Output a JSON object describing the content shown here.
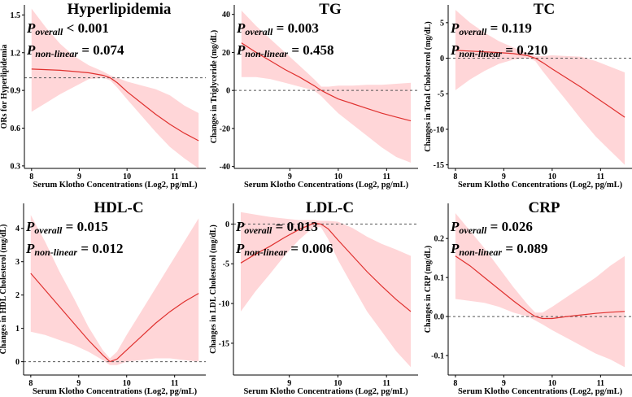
{
  "chart_data": [
    {
      "type": "line",
      "title": "Hyperlipidemia",
      "p_overall": "< 0.001",
      "p_nonlinear": "= 0.074",
      "xlabel": "Serum Klotho Concentrations (Log2, pg/mL)",
      "ylabel": "ORs for Hyperlipidemia",
      "xlim": [
        7.85,
        11.65
      ],
      "ylim": [
        0.28,
        1.58
      ],
      "x_ticks": [
        8,
        9,
        10,
        11
      ],
      "y_ticks": [
        0.3,
        0.6,
        0.9,
        1.2,
        1.5
      ],
      "y_tick_labels": [
        "0.3",
        "0.6",
        "0.9",
        "1.2",
        "1.5"
      ],
      "reference": 1,
      "x": [
        8.0,
        8.3,
        8.6,
        8.9,
        9.2,
        9.5,
        9.65,
        9.8,
        10.0,
        10.3,
        10.6,
        10.9,
        11.2,
        11.5
      ],
      "estimate": [
        1.07,
        1.065,
        1.06,
        1.05,
        1.04,
        1.02,
        1.0,
        0.96,
        0.89,
        0.8,
        0.71,
        0.63,
        0.56,
        0.5
      ],
      "lower": [
        0.73,
        0.8,
        0.87,
        0.93,
        0.99,
        1.0,
        0.98,
        0.92,
        0.83,
        0.7,
        0.57,
        0.45,
        0.36,
        0.28
      ],
      "upper": [
        1.55,
        1.4,
        1.27,
        1.17,
        1.1,
        1.05,
        1.02,
        1.0,
        0.97,
        0.94,
        0.91,
        0.86,
        0.78,
        0.72
      ]
    },
    {
      "type": "line",
      "title": "TG",
      "p_overall": "= 0.003",
      "p_nonlinear": "= 0.458",
      "xlabel": "Serum Klotho Concentrations (Log2, pg/mL)",
      "ylabel": "Changes in Triglyceride (mg/dL)",
      "xlim": [
        7.85,
        11.65
      ],
      "ylim": [
        -41,
        45
      ],
      "x_ticks": [
        9,
        10,
        11
      ],
      "y_ticks": [
        -40,
        -20,
        0,
        20,
        40
      ],
      "y_tick_labels": [
        "-40",
        "-20",
        "0",
        "20",
        "40"
      ],
      "reference": 0,
      "x": [
        8.0,
        8.3,
        8.6,
        8.9,
        9.2,
        9.5,
        9.65,
        9.8,
        10.0,
        10.3,
        10.6,
        10.9,
        11.2,
        11.5
      ],
      "estimate": [
        25,
        20,
        15.5,
        11,
        7,
        2.5,
        0,
        -2,
        -4.5,
        -7,
        -9.5,
        -12,
        -14,
        -16
      ],
      "lower": [
        7,
        7,
        6,
        4,
        2,
        0,
        -3,
        -7,
        -12,
        -18,
        -24,
        -30,
        -35,
        -38
      ],
      "upper": [
        42,
        34,
        27,
        20,
        13,
        6,
        2,
        2,
        2.5,
        2.5,
        3,
        3,
        3.5,
        4
      ]
    },
    {
      "type": "line",
      "title": "TC",
      "p_overall": "= 0.119",
      "p_nonlinear": "= 0.210",
      "xlabel": "Serum Klotho Concentrations (Log2, pg/mL)",
      "ylabel": "Changes in Total Cholesterol (mg/dL)",
      "xlim": [
        7.85,
        11.65
      ],
      "ylim": [
        -15.5,
        7.5
      ],
      "x_ticks": [
        8,
        9,
        10,
        11
      ],
      "y_ticks": [
        -15,
        -10,
        -5,
        0,
        5
      ],
      "y_tick_labels": [
        "-15",
        "-10",
        "-5",
        "0",
        "5"
      ],
      "reference": 0,
      "x": [
        8.0,
        8.3,
        8.6,
        8.9,
        9.2,
        9.5,
        9.65,
        9.8,
        10.0,
        10.3,
        10.6,
        10.9,
        11.2,
        11.5
      ],
      "estimate": [
        1.1,
        1.0,
        0.9,
        0.8,
        0.65,
        0.35,
        0,
        -0.6,
        -1.5,
        -2.8,
        -4.1,
        -5.5,
        -6.9,
        -8.3
      ],
      "lower": [
        -4.5,
        -3,
        -1.8,
        -0.8,
        -0.2,
        0,
        -0.4,
        -1.8,
        -3.5,
        -6,
        -8.6,
        -11,
        -13,
        -15
      ],
      "upper": [
        6.8,
        5,
        3.6,
        2.4,
        1.5,
        0.7,
        0.3,
        0.3,
        0.4,
        0.3,
        0.2,
        -0.4,
        -1.2,
        -2
      ]
    },
    {
      "type": "line",
      "title": "HDL-C",
      "p_overall": "= 0.015",
      "p_nonlinear": "= 0.012",
      "xlabel": "Serum Klotho Concentrations (Log2, pg/mL)",
      "ylabel": "Changes in HDL Cholesterol (mg/dL)",
      "xlim": [
        7.85,
        11.65
      ],
      "ylim": [
        -0.4,
        4.75
      ],
      "x_ticks": [
        8,
        9,
        10,
        11
      ],
      "y_ticks": [
        0,
        1,
        2,
        3,
        4
      ],
      "y_tick_labels": [
        "0",
        "1",
        "2",
        "3",
        "4"
      ],
      "reference": 0,
      "x": [
        8.0,
        8.3,
        8.6,
        8.9,
        9.2,
        9.5,
        9.65,
        9.8,
        10.0,
        10.3,
        10.6,
        10.9,
        11.2,
        11.5
      ],
      "estimate": [
        2.65,
        2.15,
        1.65,
        1.15,
        0.65,
        0.2,
        0,
        0.08,
        0.35,
        0.75,
        1.15,
        1.5,
        1.8,
        2.05
      ],
      "lower": [
        0.9,
        0.8,
        0.65,
        0.5,
        0.3,
        0.05,
        -0.1,
        -0.1,
        0,
        0.05,
        0.1,
        0.1,
        0.05,
        0
      ],
      "upper": [
        4.4,
        3.6,
        2.7,
        1.9,
        1.05,
        0.35,
        0.1,
        0.3,
        0.8,
        1.5,
        2.2,
        2.9,
        3.6,
        4.3
      ]
    },
    {
      "type": "line",
      "title": "LDL-C",
      "p_overall": "= 0.013",
      "p_nonlinear": "= 0.006",
      "xlabel": "Serum Klotho Concentrations (Log2, pg/mL)",
      "ylabel": "Changes in LDL Cholesterol (mg/dL)",
      "xlim": [
        7.85,
        11.65
      ],
      "ylim": [
        -19,
        2.6
      ],
      "x_ticks": [
        9,
        10,
        11
      ],
      "y_ticks": [
        -15,
        -10,
        -5,
        0
      ],
      "y_tick_labels": [
        "-15",
        "-10",
        "-5",
        "0"
      ],
      "reference": 0,
      "x": [
        8.0,
        8.3,
        8.6,
        8.9,
        9.2,
        9.5,
        9.65,
        9.8,
        10.0,
        10.3,
        10.6,
        10.9,
        11.2,
        11.5
      ],
      "estimate": [
        -4.9,
        -3.8,
        -2.8,
        -1.7,
        -0.7,
        0.1,
        0,
        -0.6,
        -2,
        -4,
        -6,
        -7.8,
        -9.5,
        -11
      ],
      "lower": [
        -11,
        -8.5,
        -6.3,
        -4,
        -2,
        -0.4,
        -0.4,
        -1.9,
        -4.5,
        -7.8,
        -11,
        -13.5,
        -16,
        -18
      ],
      "upper": [
        1.5,
        1.2,
        0.9,
        0.7,
        0.5,
        0.5,
        0.4,
        0.4,
        0.3,
        -0.5,
        -1.6,
        -2.5,
        -3.2,
        -4
      ]
    },
    {
      "type": "line",
      "title": "CRP",
      "p_overall": "= 0.026",
      "p_nonlinear": "= 0.089",
      "xlabel": "Serum Klotho Concentrations (Log2, pg/mL)",
      "ylabel": "Changes in CRP (mg/dL)",
      "xlim": [
        7.85,
        11.65
      ],
      "ylim": [
        -0.15,
        0.29
      ],
      "x_ticks": [
        8,
        9,
        10,
        11
      ],
      "y_ticks": [
        -0.1,
        0,
        0.1,
        0.2
      ],
      "y_tick_labels": [
        "-0.1",
        "0.0",
        "0.1",
        "0.2"
      ],
      "reference": 0,
      "x": [
        8.0,
        8.3,
        8.6,
        8.9,
        9.2,
        9.5,
        9.65,
        9.8,
        10.0,
        10.3,
        10.6,
        10.9,
        11.2,
        11.5
      ],
      "estimate": [
        0.155,
        0.13,
        0.1,
        0.07,
        0.04,
        0.012,
        0,
        -0.005,
        -0.005,
        0,
        0.004,
        0.008,
        0.011,
        0.013
      ],
      "lower": [
        0.045,
        0.04,
        0.035,
        0.025,
        0.01,
        0,
        -0.01,
        -0.02,
        -0.035,
        -0.055,
        -0.075,
        -0.095,
        -0.11,
        -0.13
      ],
      "upper": [
        0.265,
        0.22,
        0.175,
        0.125,
        0.075,
        0.03,
        0.01,
        0.01,
        0.025,
        0.05,
        0.075,
        0.1,
        0.13,
        0.155
      ]
    }
  ]
}
